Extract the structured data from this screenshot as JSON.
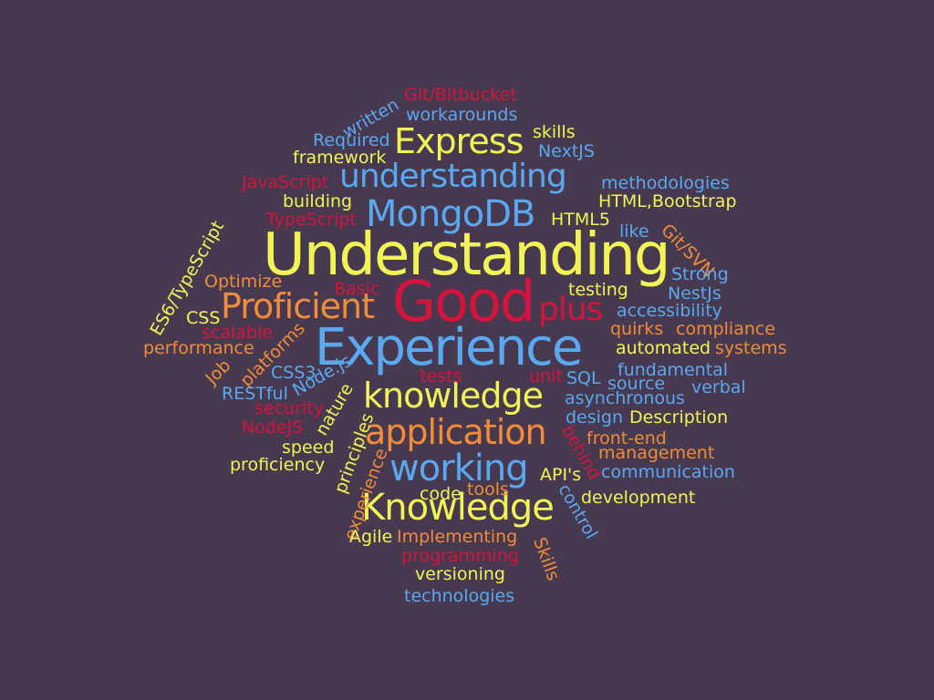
{
  "colors": {
    "background": "#47394f",
    "yellow": "#f2f455",
    "blue": "#5aa8f0",
    "orange": "#f08c3a",
    "red": "#d4143c"
  },
  "words": [
    {
      "text": "Understanding",
      "color": "#f2f455"
    },
    {
      "text": "Experience",
      "color": "#5aa8f0"
    },
    {
      "text": "Good",
      "color": "#d4143c"
    },
    {
      "text": "Proficient",
      "color": "#f08c3a"
    },
    {
      "text": "plus",
      "color": "#d4143c"
    },
    {
      "text": "MongoDB",
      "color": "#5aa8f0"
    },
    {
      "text": "understanding",
      "color": "#5aa8f0"
    },
    {
      "text": "Express",
      "color": "#f2f455"
    },
    {
      "text": "knowledge",
      "color": "#f2f455"
    },
    {
      "text": "application",
      "color": "#f08c3a"
    },
    {
      "text": "working",
      "color": "#5aa8f0"
    },
    {
      "text": "Knowledge",
      "color": "#f2f455"
    },
    {
      "text": "Git/Bitbucket",
      "color": "#d4143c"
    },
    {
      "text": "workarounds",
      "color": "#5aa8f0"
    },
    {
      "text": "written",
      "color": "#5aa8f0"
    },
    {
      "text": "skills",
      "color": "#f2f455"
    },
    {
      "text": "Required",
      "color": "#5aa8f0"
    },
    {
      "text": "NextJS",
      "color": "#5aa8f0"
    },
    {
      "text": "framework",
      "color": "#f2f455"
    },
    {
      "text": "JavaScript",
      "color": "#d4143c"
    },
    {
      "text": "methodologies",
      "color": "#5aa8f0"
    },
    {
      "text": "building",
      "color": "#f2f455"
    },
    {
      "text": "HTML,Bootstrap",
      "color": "#f2f455"
    },
    {
      "text": "TypeScript",
      "color": "#d4143c"
    },
    {
      "text": "HTML5",
      "color": "#f2f455"
    },
    {
      "text": "like",
      "color": "#5aa8f0"
    },
    {
      "text": "Git/SVN",
      "color": "#f08c3a"
    },
    {
      "text": "ES6/TypeScript",
      "color": "#f2f455"
    },
    {
      "text": "Strong",
      "color": "#5aa8f0"
    },
    {
      "text": "Optimize",
      "color": "#f08c3a"
    },
    {
      "text": "Basic",
      "color": "#d4143c"
    },
    {
      "text": "testing",
      "color": "#f2f455"
    },
    {
      "text": "NestJs",
      "color": "#5aa8f0"
    },
    {
      "text": "CSS",
      "color": "#f2f455"
    },
    {
      "text": "accessibility",
      "color": "#5aa8f0"
    },
    {
      "text": "scalable",
      "color": "#d4143c"
    },
    {
      "text": "quirks",
      "color": "#f08c3a"
    },
    {
      "text": "compliance",
      "color": "#f08c3a"
    },
    {
      "text": "performance",
      "color": "#f08c3a"
    },
    {
      "text": "automated",
      "color": "#f2f455"
    },
    {
      "text": "systems",
      "color": "#f08c3a"
    },
    {
      "text": "platforms",
      "color": "#f08c3a"
    },
    {
      "text": "Job",
      "color": "#f08c3a"
    },
    {
      "text": "CSS3",
      "color": "#5aa8f0"
    },
    {
      "text": "tests",
      "color": "#d4143c"
    },
    {
      "text": "unit",
      "color": "#d4143c"
    },
    {
      "text": "SQL",
      "color": "#5aa8f0"
    },
    {
      "text": "fundamental",
      "color": "#5aa8f0"
    },
    {
      "text": "Node.js",
      "color": "#5aa8f0"
    },
    {
      "text": "RESTful",
      "color": "#5aa8f0"
    },
    {
      "text": "source",
      "color": "#5aa8f0"
    },
    {
      "text": "verbal",
      "color": "#5aa8f0"
    },
    {
      "text": "asynchronous",
      "color": "#5aa8f0"
    },
    {
      "text": "security",
      "color": "#d4143c"
    },
    {
      "text": "nature",
      "color": "#f2f455"
    },
    {
      "text": "design",
      "color": "#5aa8f0"
    },
    {
      "text": "Description",
      "color": "#f2f455"
    },
    {
      "text": "NodeJS",
      "color": "#d4143c"
    },
    {
      "text": "front-end",
      "color": "#f08c3a"
    },
    {
      "text": "speed",
      "color": "#f2f455"
    },
    {
      "text": "principles",
      "color": "#f2f455"
    },
    {
      "text": "management",
      "color": "#f08c3a"
    },
    {
      "text": "behind",
      "color": "#d4143c"
    },
    {
      "text": "proficiency",
      "color": "#f2f455"
    },
    {
      "text": "API's",
      "color": "#f2f455"
    },
    {
      "text": "communication",
      "color": "#5aa8f0"
    },
    {
      "text": "experience",
      "color": "#f08c3a"
    },
    {
      "text": "code",
      "color": "#f2f455"
    },
    {
      "text": "tools",
      "color": "#f08c3a"
    },
    {
      "text": "control",
      "color": "#5aa8f0"
    },
    {
      "text": "development",
      "color": "#f2f455"
    },
    {
      "text": "Agile",
      "color": "#f2f455"
    },
    {
      "text": "Implementing",
      "color": "#f08c3a"
    },
    {
      "text": "programming",
      "color": "#d4143c"
    },
    {
      "text": "Skills",
      "color": "#f08c3a"
    },
    {
      "text": "versioning",
      "color": "#f2f455"
    },
    {
      "text": "technologies",
      "color": "#5aa8f0"
    }
  ]
}
